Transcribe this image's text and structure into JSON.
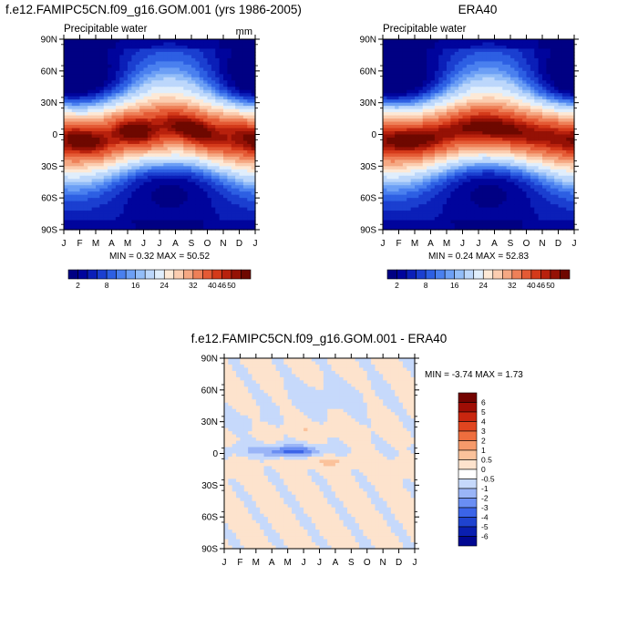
{
  "palettes": {
    "field": [
      "#000083",
      "#00049c",
      "#0b1fb8",
      "#1b3fd0",
      "#2d5fe3",
      "#4a80ef",
      "#6c9ff5",
      "#93bdf8",
      "#bcd7fb",
      "#e0eefc",
      "#fde9d6",
      "#fbcdb0",
      "#f5a883",
      "#ee8058",
      "#e45a35",
      "#d43a1a",
      "#b8210d",
      "#951105",
      "#6e0800"
    ],
    "diff": [
      "#010892",
      "#0a1fb0",
      "#1f43cf",
      "#3b64e8",
      "#6a8ef3",
      "#9ab5f7",
      "#c6d9fb",
      "#ffffff",
      "#fde3cd",
      "#fbc29b",
      "#f69a6a",
      "#ee6e3e",
      "#e0451f",
      "#c8260f",
      "#9f0e05",
      "#730300"
    ]
  },
  "chart_data": [
    {
      "type": "heatmap",
      "id": "model",
      "title": "f.e12.FAMIPC5CN.f09_g16.GOM.001 (yrs 1986-2005)",
      "field_label": "Precipitable water",
      "units": "mm",
      "x": [
        "J",
        "F",
        "M",
        "A",
        "M",
        "J",
        "J",
        "A",
        "S",
        "O",
        "N",
        "D",
        "J"
      ],
      "y": [
        "90N",
        "60N",
        "30N",
        "0",
        "30S",
        "60S",
        "90S"
      ],
      "ylim": [
        -90,
        90
      ],
      "stats_text": "MIN =   0.32 MAX =  50.52",
      "min": 0.32,
      "max": 50.52,
      "colorbar_labels": [
        "2",
        "8",
        "16",
        "24",
        "32",
        "40",
        "46",
        "50"
      ],
      "colorbar_levels": [
        2,
        4,
        6,
        8,
        10,
        12,
        14,
        16,
        20,
        24,
        28,
        32,
        36,
        40,
        44,
        46,
        48,
        50
      ],
      "colormap": "blue-white-red",
      "variant": 0
    },
    {
      "type": "heatmap",
      "id": "obs",
      "title": "ERA40",
      "field_label": "Precipitable water",
      "units": "",
      "x": [
        "J",
        "F",
        "M",
        "A",
        "M",
        "J",
        "J",
        "A",
        "S",
        "O",
        "N",
        "D",
        "J"
      ],
      "y": [
        "90N",
        "60N",
        "30N",
        "0",
        "30S",
        "60S",
        "90S"
      ],
      "ylim": [
        -90,
        90
      ],
      "stats_text": "MIN =   0.24 MAX =  52.83",
      "min": 0.24,
      "max": 52.83,
      "colorbar_labels": [
        "2",
        "8",
        "16",
        "24",
        "32",
        "40",
        "46",
        "50"
      ],
      "colorbar_levels": [
        2,
        4,
        6,
        8,
        10,
        12,
        14,
        16,
        20,
        24,
        28,
        32,
        36,
        40,
        44,
        46,
        48,
        50
      ],
      "colormap": "blue-white-red",
      "variant": 1
    },
    {
      "type": "heatmap",
      "id": "diff",
      "title": "f.e12.FAMIPC5CN.f09_g16.GOM.001 - ERA40",
      "x": [
        "J",
        "F",
        "M",
        "A",
        "M",
        "J",
        "J",
        "A",
        "S",
        "O",
        "N",
        "D",
        "J"
      ],
      "y": [
        "90N",
        "60N",
        "30N",
        "0",
        "30S",
        "60S",
        "90S"
      ],
      "ylim": [
        -90,
        90
      ],
      "stats_text": "MIN =  -3.74 MAX =   1.73",
      "min": -3.74,
      "max": 1.73,
      "colorbar_labels": [
        "6",
        "5",
        "4",
        "3",
        "2",
        "1",
        "0.5",
        "0",
        "-0.5",
        "-1",
        "-2",
        "-3",
        "-4",
        "-5",
        "-6"
      ],
      "colorbar_levels": [
        6,
        5,
        4,
        3,
        2,
        1,
        0.5,
        0,
        -0.5,
        -1,
        -2,
        -3,
        -4,
        -5,
        -6
      ],
      "colormap": "blue-white-red diverging"
    }
  ]
}
